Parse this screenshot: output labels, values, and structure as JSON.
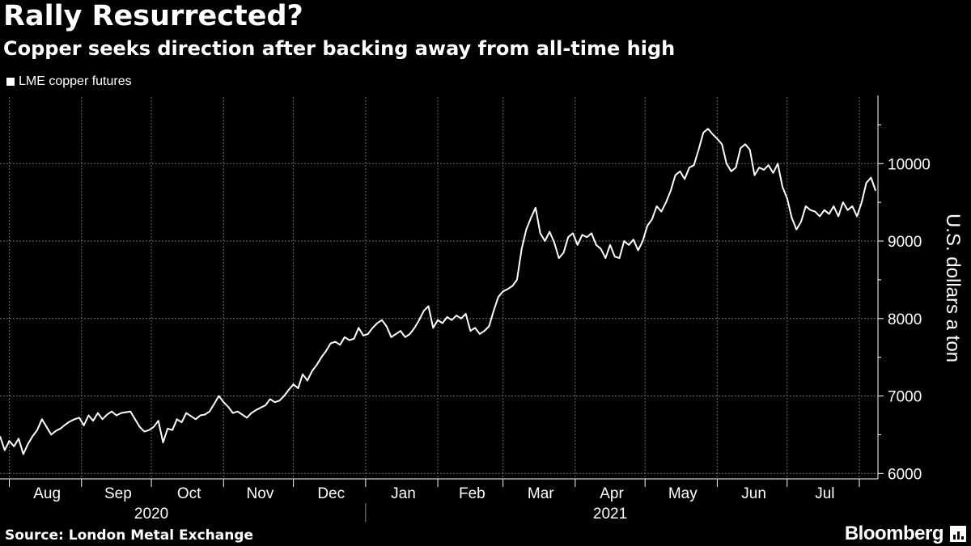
{
  "header": {
    "title": "Rally Resurrected?",
    "subtitle": "Copper seeks direction after backing away from all-time high"
  },
  "footer": {
    "source": "Source: London Metal Exchange",
    "brand": "Bloomberg",
    "brand_icon": "bloomberg-terminal-icon"
  },
  "colors": {
    "background": "#000000",
    "line": "#ffffff",
    "grid": "#6b6b6b"
  },
  "chart_data": {
    "type": "line",
    "title": "Rally Resurrected?",
    "subtitle": "Copper seeks direction after backing away from all-time high",
    "xlabel": "",
    "ylabel": "U.S. dollars a ton",
    "y_axis_side": "right",
    "ylim": [
      5930,
      10880
    ],
    "y_ticks": [
      6000,
      7000,
      8000,
      9000,
      10000
    ],
    "y_tick_labels": [
      "6000",
      "7000",
      "8000",
      "9000",
      "10000"
    ],
    "xlim": [
      "2020-07-28",
      "2021-08-09"
    ],
    "month_ticks": [
      {
        "label": "Aug",
        "date": "2020-08-01"
      },
      {
        "label": "Sep",
        "date": "2020-09-01"
      },
      {
        "label": "Oct",
        "date": "2020-10-01"
      },
      {
        "label": "Nov",
        "date": "2020-11-01"
      },
      {
        "label": "Dec",
        "date": "2020-12-01"
      },
      {
        "label": "Jan",
        "date": "2021-01-01"
      },
      {
        "label": "Feb",
        "date": "2021-02-01"
      },
      {
        "label": "Mar",
        "date": "2021-03-01"
      },
      {
        "label": "Apr",
        "date": "2021-04-01"
      },
      {
        "label": "May",
        "date": "2021-05-01"
      },
      {
        "label": "Jun",
        "date": "2021-06-01"
      },
      {
        "label": "Jul",
        "date": "2021-07-01"
      }
    ],
    "month_boundaries": [
      "2020-08-01",
      "2020-09-01",
      "2020-10-01",
      "2020-11-01",
      "2020-12-01",
      "2021-01-01",
      "2021-02-01",
      "2021-03-01",
      "2021-04-01",
      "2021-05-01",
      "2021-06-01",
      "2021-07-01",
      "2021-08-01"
    ],
    "year_labels": [
      {
        "label": "2020",
        "date": "2020-10-01"
      },
      {
        "label": "2021",
        "date": "2021-04-16"
      }
    ],
    "year_divider": "2021-01-01",
    "grid": true,
    "legend": "top-left",
    "series": [
      {
        "name": "LME copper futures",
        "points": [
          [
            "2020-07-28",
            6480
          ],
          [
            "2020-07-30",
            6300
          ],
          [
            "2020-08-01",
            6420
          ],
          [
            "2020-08-03",
            6350
          ],
          [
            "2020-08-05",
            6450
          ],
          [
            "2020-08-07",
            6250
          ],
          [
            "2020-08-09",
            6380
          ],
          [
            "2020-08-11",
            6480
          ],
          [
            "2020-08-13",
            6560
          ],
          [
            "2020-08-15",
            6700
          ],
          [
            "2020-08-17",
            6600
          ],
          [
            "2020-08-19",
            6500
          ],
          [
            "2020-08-21",
            6550
          ],
          [
            "2020-08-23",
            6580
          ],
          [
            "2020-08-25",
            6630
          ],
          [
            "2020-08-27",
            6670
          ],
          [
            "2020-08-29",
            6700
          ],
          [
            "2020-08-31",
            6720
          ],
          [
            "2020-09-02",
            6620
          ],
          [
            "2020-09-04",
            6750
          ],
          [
            "2020-09-06",
            6680
          ],
          [
            "2020-09-08",
            6780
          ],
          [
            "2020-09-10",
            6700
          ],
          [
            "2020-09-12",
            6760
          ],
          [
            "2020-09-14",
            6800
          ],
          [
            "2020-09-16",
            6750
          ],
          [
            "2020-09-18",
            6780
          ],
          [
            "2020-09-20",
            6790
          ],
          [
            "2020-09-22",
            6800
          ],
          [
            "2020-09-24",
            6700
          ],
          [
            "2020-09-26",
            6600
          ],
          [
            "2020-09-28",
            6540
          ],
          [
            "2020-09-30",
            6560
          ],
          [
            "2020-10-02",
            6600
          ],
          [
            "2020-10-04",
            6680
          ],
          [
            "2020-10-06",
            6400
          ],
          [
            "2020-10-08",
            6580
          ],
          [
            "2020-10-10",
            6560
          ],
          [
            "2020-10-12",
            6700
          ],
          [
            "2020-10-14",
            6660
          ],
          [
            "2020-10-16",
            6780
          ],
          [
            "2020-10-18",
            6740
          ],
          [
            "2020-10-20",
            6700
          ],
          [
            "2020-10-22",
            6750
          ],
          [
            "2020-10-24",
            6760
          ],
          [
            "2020-10-26",
            6800
          ],
          [
            "2020-10-28",
            6900
          ],
          [
            "2020-10-30",
            7000
          ],
          [
            "2020-11-01",
            6920
          ],
          [
            "2020-11-03",
            6860
          ],
          [
            "2020-11-05",
            6780
          ],
          [
            "2020-11-07",
            6800
          ],
          [
            "2020-11-09",
            6760
          ],
          [
            "2020-11-11",
            6720
          ],
          [
            "2020-11-13",
            6780
          ],
          [
            "2020-11-15",
            6820
          ],
          [
            "2020-11-17",
            6850
          ],
          [
            "2020-11-19",
            6880
          ],
          [
            "2020-11-21",
            6960
          ],
          [
            "2020-11-23",
            6920
          ],
          [
            "2020-11-25",
            6940
          ],
          [
            "2020-11-27",
            7000
          ],
          [
            "2020-11-29",
            7080
          ],
          [
            "2020-12-01",
            7150
          ],
          [
            "2020-12-03",
            7100
          ],
          [
            "2020-12-05",
            7280
          ],
          [
            "2020-12-07",
            7200
          ],
          [
            "2020-12-09",
            7320
          ],
          [
            "2020-12-11",
            7400
          ],
          [
            "2020-12-13",
            7500
          ],
          [
            "2020-12-15",
            7580
          ],
          [
            "2020-12-17",
            7680
          ],
          [
            "2020-12-19",
            7700
          ],
          [
            "2020-12-21",
            7660
          ],
          [
            "2020-12-23",
            7760
          ],
          [
            "2020-12-25",
            7720
          ],
          [
            "2020-12-27",
            7740
          ],
          [
            "2020-12-29",
            7880
          ],
          [
            "2020-12-31",
            7780
          ],
          [
            "2021-01-02",
            7800
          ],
          [
            "2021-01-04",
            7880
          ],
          [
            "2021-01-06",
            7940
          ],
          [
            "2021-01-08",
            7980
          ],
          [
            "2021-01-10",
            7900
          ],
          [
            "2021-01-12",
            7760
          ],
          [
            "2021-01-14",
            7800
          ],
          [
            "2021-01-16",
            7840
          ],
          [
            "2021-01-18",
            7760
          ],
          [
            "2021-01-20",
            7800
          ],
          [
            "2021-01-22",
            7880
          ],
          [
            "2021-01-24",
            7980
          ],
          [
            "2021-01-26",
            8100
          ],
          [
            "2021-01-28",
            8160
          ],
          [
            "2021-01-30",
            7880
          ],
          [
            "2021-02-01",
            7980
          ],
          [
            "2021-02-03",
            7940
          ],
          [
            "2021-02-05",
            8020
          ],
          [
            "2021-02-07",
            7980
          ],
          [
            "2021-02-09",
            8040
          ],
          [
            "2021-02-11",
            8000
          ],
          [
            "2021-02-13",
            8060
          ],
          [
            "2021-02-15",
            7840
          ],
          [
            "2021-02-17",
            7880
          ],
          [
            "2021-02-19",
            7800
          ],
          [
            "2021-02-21",
            7840
          ],
          [
            "2021-02-23",
            7900
          ],
          [
            "2021-02-25",
            8100
          ],
          [
            "2021-02-27",
            8280
          ],
          [
            "2021-03-01",
            8350
          ],
          [
            "2021-03-03",
            8380
          ],
          [
            "2021-03-05",
            8420
          ],
          [
            "2021-03-07",
            8500
          ],
          [
            "2021-03-09",
            8900
          ],
          [
            "2021-03-11",
            9150
          ],
          [
            "2021-03-13",
            9300
          ],
          [
            "2021-03-15",
            9430
          ],
          [
            "2021-03-17",
            9100
          ],
          [
            "2021-03-19",
            9000
          ],
          [
            "2021-03-21",
            9120
          ],
          [
            "2021-03-23",
            8980
          ],
          [
            "2021-03-25",
            8780
          ],
          [
            "2021-03-27",
            8850
          ],
          [
            "2021-03-29",
            9050
          ],
          [
            "2021-03-31",
            9100
          ],
          [
            "2021-04-02",
            8950
          ],
          [
            "2021-04-04",
            9080
          ],
          [
            "2021-04-06",
            9050
          ],
          [
            "2021-04-08",
            9100
          ],
          [
            "2021-04-10",
            8950
          ],
          [
            "2021-04-12",
            8900
          ],
          [
            "2021-04-14",
            8780
          ],
          [
            "2021-04-16",
            8950
          ],
          [
            "2021-04-18",
            8800
          ],
          [
            "2021-04-20",
            8780
          ],
          [
            "2021-04-22",
            9000
          ],
          [
            "2021-04-24",
            8950
          ],
          [
            "2021-04-26",
            9020
          ],
          [
            "2021-04-28",
            8880
          ],
          [
            "2021-04-30",
            9000
          ],
          [
            "2021-05-02",
            9200
          ],
          [
            "2021-05-04",
            9280
          ],
          [
            "2021-05-06",
            9450
          ],
          [
            "2021-05-08",
            9380
          ],
          [
            "2021-05-10",
            9500
          ],
          [
            "2021-05-12",
            9650
          ],
          [
            "2021-05-14",
            9850
          ],
          [
            "2021-05-16",
            9900
          ],
          [
            "2021-05-18",
            9800
          ],
          [
            "2021-05-20",
            9950
          ],
          [
            "2021-05-22",
            9980
          ],
          [
            "2021-05-24",
            10180
          ],
          [
            "2021-05-26",
            10400
          ],
          [
            "2021-05-28",
            10450
          ],
          [
            "2021-05-30",
            10380
          ],
          [
            "2021-06-01",
            10320
          ],
          [
            "2021-06-03",
            10250
          ],
          [
            "2021-06-05",
            10000
          ],
          [
            "2021-06-07",
            9900
          ],
          [
            "2021-06-09",
            9950
          ],
          [
            "2021-06-11",
            10200
          ],
          [
            "2021-06-13",
            10250
          ],
          [
            "2021-06-15",
            10180
          ],
          [
            "2021-06-17",
            9850
          ],
          [
            "2021-06-19",
            9950
          ],
          [
            "2021-06-21",
            9920
          ],
          [
            "2021-06-23",
            9980
          ],
          [
            "2021-06-25",
            9880
          ],
          [
            "2021-06-27",
            10000
          ],
          [
            "2021-06-29",
            9700
          ],
          [
            "2021-07-01",
            9550
          ],
          [
            "2021-07-03",
            9300
          ],
          [
            "2021-07-05",
            9150
          ],
          [
            "2021-07-07",
            9250
          ],
          [
            "2021-07-09",
            9450
          ],
          [
            "2021-07-11",
            9400
          ],
          [
            "2021-07-13",
            9380
          ],
          [
            "2021-07-15",
            9320
          ],
          [
            "2021-07-17",
            9400
          ],
          [
            "2021-07-19",
            9350
          ],
          [
            "2021-07-21",
            9450
          ],
          [
            "2021-07-23",
            9320
          ],
          [
            "2021-07-25",
            9500
          ],
          [
            "2021-07-27",
            9400
          ],
          [
            "2021-07-29",
            9450
          ],
          [
            "2021-07-31",
            9320
          ],
          [
            "2021-08-02",
            9500
          ],
          [
            "2021-08-04",
            9750
          ],
          [
            "2021-08-06",
            9820
          ],
          [
            "2021-08-08",
            9650
          ]
        ]
      }
    ]
  }
}
